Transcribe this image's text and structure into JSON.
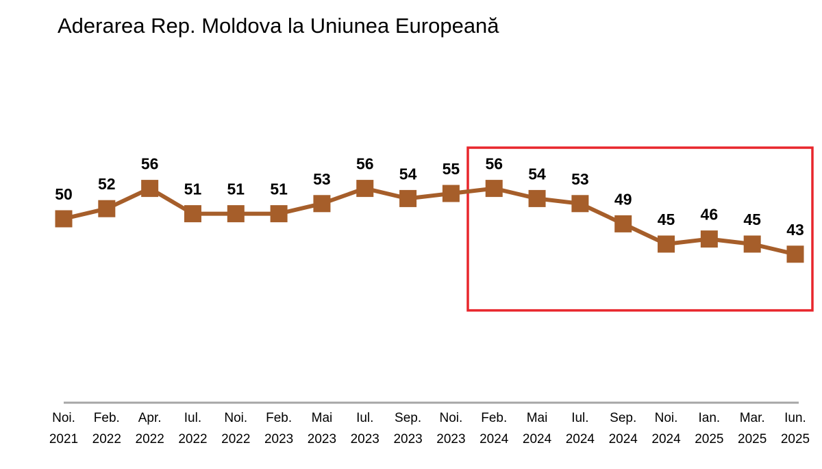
{
  "title": "Aderarea Rep. Moldova la Uniunea Europeană",
  "colors": {
    "series": "#A65E2A",
    "highlight_box": "#E8262C",
    "axis": "#a6a6a6"
  },
  "chart_data": {
    "type": "line",
    "title": "Aderarea Rep. Moldova la Uniunea Europeană",
    "categories": [
      [
        "Noi.",
        "2021"
      ],
      [
        "Feb.",
        "2022"
      ],
      [
        "Apr.",
        "2022"
      ],
      [
        "Iul.",
        "2022"
      ],
      [
        "Noi.",
        "2022"
      ],
      [
        "Feb.",
        "2023"
      ],
      [
        "Mai",
        "2023"
      ],
      [
        "Iul.",
        "2023"
      ],
      [
        "Sep.",
        "2023"
      ],
      [
        "Noi.",
        "2023"
      ],
      [
        "Feb.",
        "2024"
      ],
      [
        "Mai",
        "2024"
      ],
      [
        "Iul.",
        "2024"
      ],
      [
        "Sep.",
        "2024"
      ],
      [
        "Noi.",
        "2024"
      ],
      [
        "Ian.",
        "2025"
      ],
      [
        "Mar.",
        "2025"
      ],
      [
        "Iun.",
        "2025"
      ]
    ],
    "series": [
      {
        "values": [
          50,
          52,
          56,
          51,
          51,
          51,
          53,
          56,
          54,
          55,
          56,
          54,
          53,
          49,
          45,
          46,
          45,
          43
        ]
      }
    ],
    "marker": "square",
    "data_labels": true,
    "grid": false,
    "highlight_range": {
      "from": "Feb. 2024",
      "to": "Iun. 2025"
    }
  }
}
